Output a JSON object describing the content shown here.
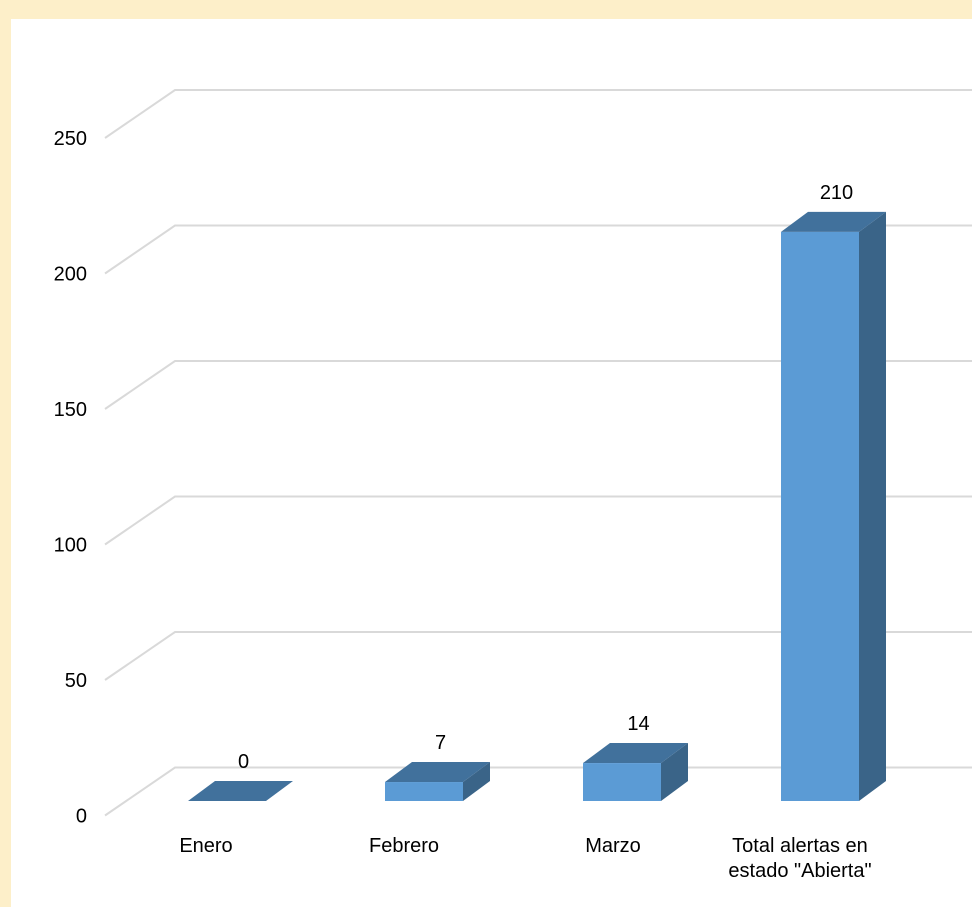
{
  "chart_data": {
    "type": "bar",
    "categories": [
      "Enero",
      "Febrero",
      "Marzo",
      "Total alertas en\nestado \"Abierta\""
    ],
    "values": [
      0,
      7,
      14,
      210
    ],
    "data_labels": [
      "0",
      "7",
      "14",
      "210"
    ],
    "ylim": [
      0,
      250
    ],
    "yticks": [
      0,
      50,
      100,
      150,
      200,
      250
    ],
    "title": "",
    "xlabel": "",
    "ylabel": "",
    "grid": true,
    "legend": "none",
    "three_d": true,
    "colors": {
      "bar_front": "#5b9bd5",
      "bar_top": "#41719c",
      "bar_side": "#3a6488",
      "gridline": "#d9d9d9",
      "background": "#ffffff",
      "frame": "#fdefc9"
    }
  }
}
